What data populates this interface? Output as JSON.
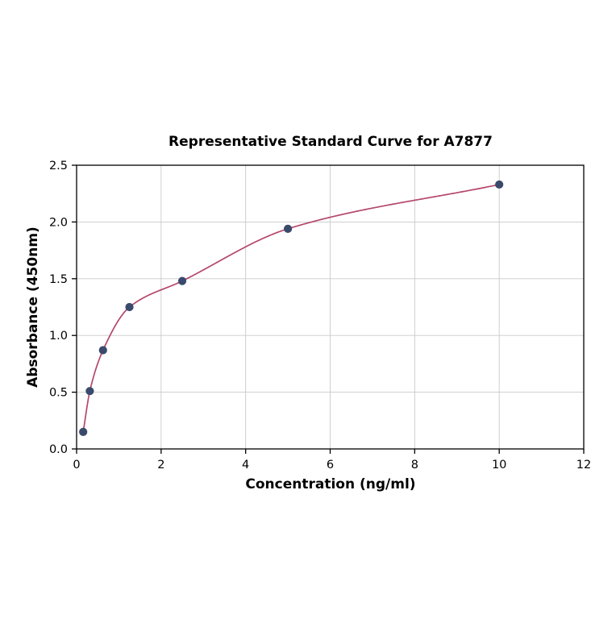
{
  "chart_data": {
    "type": "scatter",
    "fit_line": true,
    "title": "Representative Standard Curve for A7877",
    "xlabel": "Concentration (ng/ml)",
    "ylabel": "Absorbance (450nm)",
    "xlim": [
      0,
      12
    ],
    "ylim": [
      0,
      2.5
    ],
    "grid": true,
    "legend": "none",
    "x_tick_values": [
      0,
      2,
      4,
      6,
      8,
      10,
      12
    ],
    "x_tick_labels": [
      "0",
      "2",
      "4",
      "6",
      "8",
      "10",
      "12"
    ],
    "y_tick_values": [
      0,
      0.5,
      1.0,
      1.5,
      2.0,
      2.5
    ],
    "y_tick_labels": [
      "0.0",
      "0.5",
      "1.0",
      "1.5",
      "2.0",
      "2.5"
    ],
    "points": {
      "x": [
        0.156,
        0.313,
        0.625,
        1.25,
        2.5,
        5,
        10
      ],
      "y": [
        0.15,
        0.51,
        0.87,
        1.25,
        1.48,
        1.94,
        2.33
      ]
    },
    "colors": {
      "curve": "#b5476b",
      "point": "#3a4a6d",
      "grid": "#c9c9c9",
      "axis": "#000000",
      "background": "#ffffff"
    }
  }
}
